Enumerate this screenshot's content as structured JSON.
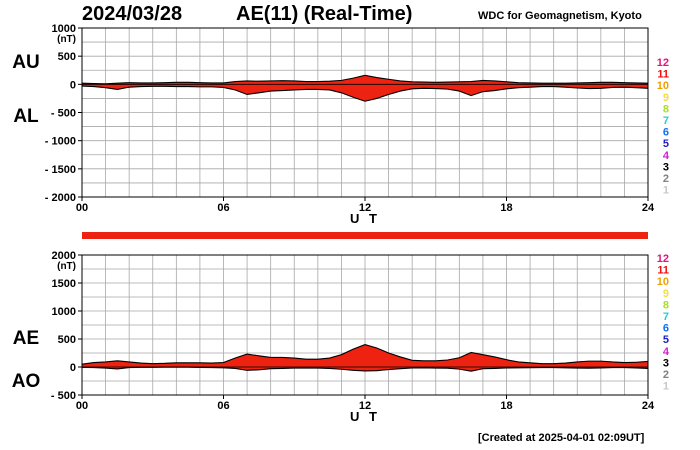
{
  "header": {
    "date": "2024/03/28",
    "title": "AE(11) (Real-Time)",
    "source": "WDC for Geomagnetism, Kyoto"
  },
  "footer": {
    "created": "[Created at 2025-04-01 02:09UT]"
  },
  "colors": {
    "fill": "#ee2211",
    "outline": "#000000",
    "grid": "#a8a8a8",
    "band": "#ee2211"
  },
  "station_count_legend": [
    {
      "label": "12",
      "color": "#e8127a"
    },
    {
      "label": "11",
      "color": "#f01010"
    },
    {
      "label": "10",
      "color": "#f0a000"
    },
    {
      "label": "9",
      "color": "#f4e040"
    },
    {
      "label": "8",
      "color": "#a8e020"
    },
    {
      "label": "7",
      "color": "#20d0d0"
    },
    {
      "label": "6",
      "color": "#1070f0"
    },
    {
      "label": "5",
      "color": "#2020c0"
    },
    {
      "label": "4",
      "color": "#d020d0"
    },
    {
      "label": "3",
      "color": "#000000"
    },
    {
      "label": "2",
      "color": "#808080"
    },
    {
      "label": "1",
      "color": "#c8c8c8"
    }
  ],
  "chart_data": [
    {
      "type": "area",
      "panel": "AU/AL",
      "series_labels": [
        "AU",
        "AL"
      ],
      "ylabel_unit": "(nT)",
      "xlabel": "U T",
      "xlim": [
        0,
        24
      ],
      "ylim": [
        -2000,
        1000
      ],
      "x_ticks": [
        "00",
        "06",
        "12",
        "18",
        "24"
      ],
      "y_ticks": [
        "1000",
        "500",
        "0",
        "- 500",
        "- 1000",
        "- 1500",
        "- 2000"
      ],
      "y_tick_values": [
        1000,
        500,
        0,
        -500,
        -1000,
        -1500,
        -2000
      ],
      "x": [
        0,
        0.5,
        1,
        1.5,
        2,
        2.5,
        3,
        3.5,
        4,
        4.5,
        5,
        5.5,
        6,
        6.5,
        7,
        7.5,
        8,
        8.5,
        9,
        9.5,
        10,
        10.5,
        11,
        11.5,
        12,
        12.5,
        13,
        13.5,
        14,
        14.5,
        15,
        15.5,
        16,
        16.5,
        17,
        17.5,
        18,
        18.5,
        19,
        19.5,
        20,
        20.5,
        21,
        21.5,
        22,
        22.5,
        23,
        23.5,
        24
      ],
      "series": [
        {
          "name": "AU",
          "values": [
            20,
            15,
            10,
            20,
            30,
            25,
            25,
            30,
            35,
            35,
            30,
            25,
            25,
            50,
            60,
            55,
            60,
            65,
            60,
            50,
            50,
            55,
            70,
            110,
            160,
            120,
            90,
            60,
            45,
            40,
            35,
            40,
            45,
            50,
            70,
            60,
            45,
            30,
            25,
            20,
            20,
            20,
            25,
            30,
            35,
            35,
            30,
            25,
            20
          ]
        },
        {
          "name": "AL",
          "values": [
            -30,
            -40,
            -60,
            -90,
            -50,
            -40,
            -35,
            -35,
            -40,
            -40,
            -45,
            -45,
            -55,
            -100,
            -180,
            -150,
            -120,
            -110,
            -100,
            -90,
            -90,
            -100,
            -150,
            -230,
            -300,
            -250,
            -180,
            -120,
            -80,
            -70,
            -75,
            -85,
            -120,
            -200,
            -130,
            -110,
            -80,
            -60,
            -50,
            -40,
            -40,
            -50,
            -65,
            -75,
            -70,
            -55,
            -50,
            -60,
            -70
          ]
        }
      ]
    },
    {
      "type": "area",
      "panel": "AE/AO",
      "series_labels": [
        "AE",
        "AO"
      ],
      "ylabel_unit": "(nT)",
      "xlabel": "U T",
      "xlim": [
        0,
        24
      ],
      "ylim": [
        -500,
        2000
      ],
      "x_ticks": [
        "00",
        "06",
        "12",
        "18",
        "24"
      ],
      "y_ticks": [
        "2000",
        "1500",
        "1000",
        "500",
        "0",
        "- 500"
      ],
      "y_tick_values": [
        2000,
        1500,
        1000,
        500,
        0,
        -500
      ],
      "x": [
        0,
        0.5,
        1,
        1.5,
        2,
        2.5,
        3,
        3.5,
        4,
        4.5,
        5,
        5.5,
        6,
        6.5,
        7,
        7.5,
        8,
        8.5,
        9,
        9.5,
        10,
        10.5,
        11,
        11.5,
        12,
        12.5,
        13,
        13.5,
        14,
        14.5,
        15,
        15.5,
        16,
        16.5,
        17,
        17.5,
        18,
        18.5,
        19,
        19.5,
        20,
        20.5,
        21,
        21.5,
        22,
        22.5,
        23,
        23.5,
        24
      ],
      "series": [
        {
          "name": "AE",
          "values": [
            50,
            80,
            90,
            110,
            90,
            70,
            60,
            65,
            75,
            75,
            75,
            70,
            80,
            160,
            230,
            200,
            170,
            170,
            160,
            140,
            140,
            160,
            220,
            320,
            400,
            340,
            250,
            180,
            120,
            110,
            110,
            125,
            165,
            260,
            220,
            180,
            130,
            90,
            75,
            60,
            60,
            70,
            90,
            105,
            105,
            90,
            80,
            85,
            100
          ]
        },
        {
          "name": "AO",
          "values": [
            -5,
            -10,
            -20,
            -35,
            -10,
            -5,
            -5,
            -3,
            -3,
            -3,
            -8,
            -10,
            -15,
            -25,
            -60,
            -50,
            -30,
            -25,
            -20,
            -20,
            -20,
            -25,
            -40,
            -60,
            -70,
            -65,
            -45,
            -30,
            -18,
            -15,
            -20,
            -22,
            -38,
            -75,
            -30,
            -25,
            -18,
            -15,
            -12,
            -10,
            -10,
            -15,
            -20,
            -22,
            -18,
            -10,
            -10,
            -17,
            -25
          ]
        }
      ]
    }
  ]
}
